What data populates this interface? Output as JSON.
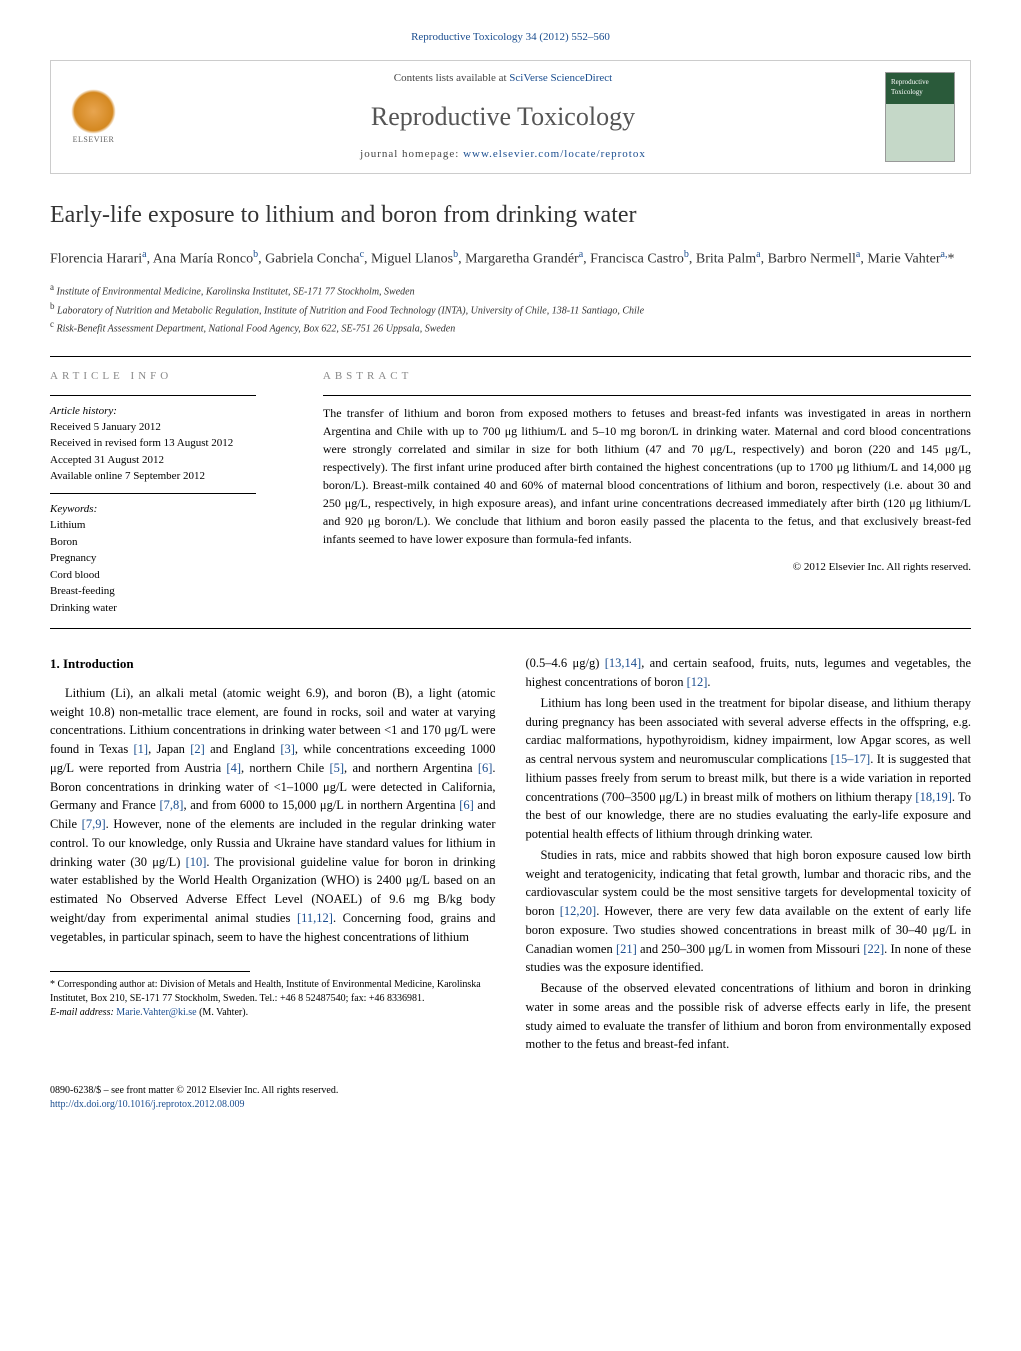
{
  "header": {
    "journal_ref": "Reproductive Toxicology 34 (2012) 552–560",
    "contents_prefix": "Contents lists available at ",
    "contents_link": "SciVerse ScienceDirect",
    "journal_name": "Reproductive Toxicology",
    "homepage_prefix": "journal homepage: ",
    "homepage_url": "www.elsevier.com/locate/reprotox",
    "publisher_name": "ELSEVIER"
  },
  "article": {
    "title": "Early-life exposure to lithium and boron from drinking water",
    "authors_html": "Florencia Harari<sup>a</sup>, Ana María Ronco<sup>b</sup>, Gabriela Concha<sup>c</sup>, Miguel Llanos<sup>b</sup>, Margaretha Grandér<sup>a</sup>, Francisca Castro<sup>b</sup>, Brita Palm<sup>a</sup>, Barbro Nermell<sup>a</sup>, Marie Vahter<sup>a,</sup>*",
    "affiliations": [
      {
        "sup": "a",
        "text": "Institute of Environmental Medicine, Karolinska Institutet, SE-171 77 Stockholm, Sweden"
      },
      {
        "sup": "b",
        "text": "Laboratory of Nutrition and Metabolic Regulation, Institute of Nutrition and Food Technology (INTA), University of Chile, 138-11 Santiago, Chile"
      },
      {
        "sup": "c",
        "text": "Risk-Benefit Assessment Department, National Food Agency, Box 622, SE-751 26 Uppsala, Sweden"
      }
    ]
  },
  "info": {
    "label": "article info",
    "history_label": "Article history:",
    "history": [
      "Received 5 January 2012",
      "Received in revised form 13 August 2012",
      "Accepted 31 August 2012",
      "Available online 7 September 2012"
    ],
    "keywords_label": "Keywords:",
    "keywords": [
      "Lithium",
      "Boron",
      "Pregnancy",
      "Cord blood",
      "Breast-feeding",
      "Drinking water"
    ]
  },
  "abstract": {
    "label": "abstract",
    "text": "The transfer of lithium and boron from exposed mothers to fetuses and breast-fed infants was investigated in areas in northern Argentina and Chile with up to 700 μg lithium/L and 5–10 mg boron/L in drinking water. Maternal and cord blood concentrations were strongly correlated and similar in size for both lithium (47 and 70 μg/L, respectively) and boron (220 and 145 μg/L, respectively). The first infant urine produced after birth contained the highest concentrations (up to 1700 μg lithium/L and 14,000 μg boron/L). Breast-milk contained 40 and 60% of maternal blood concentrations of lithium and boron, respectively (i.e. about 30 and 250 μg/L, respectively, in high exposure areas), and infant urine concentrations decreased immediately after birth (120 μg lithium/L and 920 μg boron/L). We conclude that lithium and boron easily passed the placenta to the fetus, and that exclusively breast-fed infants seemed to have lower exposure than formula-fed infants.",
    "copyright": "© 2012 Elsevier Inc. All rights reserved."
  },
  "body": {
    "intro_heading": "1. Introduction",
    "col1_p1": "Lithium (Li), an alkali metal (atomic weight 6.9), and boron (B), a light (atomic weight 10.8) non-metallic trace element, are found in rocks, soil and water at varying concentrations. Lithium concentrations in drinking water between <1 and 170 μg/L were found in Texas [1], Japan [2] and England [3], while concentrations exceeding 1000 μg/L were reported from Austria [4], northern Chile [5], and northern Argentina [6]. Boron concentrations in drinking water of <1–1000 μg/L were detected in California, Germany and France [7,8], and from 6000 to 15,000 μg/L in northern Argentina [6] and Chile [7,9]. However, none of the elements are included in the regular drinking water control. To our knowledge, only Russia and Ukraine have standard values for lithium in drinking water (30 μg/L) [10]. The provisional guideline value for boron in drinking water established by the World Health Organization (WHO) is 2400 μg/L based on an estimated No Observed Adverse Effect Level (NOAEL) of 9.6 mg B/kg body weight/day from experimental animal studies [11,12]. Concerning food, grains and vegetables, in particular spinach, seem to have the highest concentrations of lithium",
    "col2_p1": "(0.5–4.6 μg/g) [13,14], and certain seafood, fruits, nuts, legumes and vegetables, the highest concentrations of boron [12].",
    "col2_p2": "Lithium has long been used in the treatment for bipolar disease, and lithium therapy during pregnancy has been associated with several adverse effects in the offspring, e.g. cardiac malformations, hypothyroidism, kidney impairment, low Apgar scores, as well as central nervous system and neuromuscular complications [15–17]. It is suggested that lithium passes freely from serum to breast milk, but there is a wide variation in reported concentrations (700–3500 μg/L) in breast milk of mothers on lithium therapy [18,19]. To the best of our knowledge, there are no studies evaluating the early-life exposure and potential health effects of lithium through drinking water.",
    "col2_p3": "Studies in rats, mice and rabbits showed that high boron exposure caused low birth weight and teratogenicity, indicating that fetal growth, lumbar and thoracic ribs, and the cardiovascular system could be the most sensitive targets for developmental toxicity of boron [12,20]. However, there are very few data available on the extent of early life boron exposure. Two studies showed concentrations in breast milk of 30–40 μg/L in Canadian women [21] and 250–300 μg/L in women from Missouri [22]. In none of these studies was the exposure identified.",
    "col2_p4": "Because of the observed elevated concentrations of lithium and boron in drinking water in some areas and the possible risk of adverse effects early in life, the present study aimed to evaluate the transfer of lithium and boron from environmentally exposed mother to the fetus and breast-fed infant."
  },
  "footnote": {
    "corr": "* Corresponding author at: Division of Metals and Health, Institute of Environmental Medicine, Karolinska Institutet, Box 210, SE-171 77 Stockholm, Sweden. Tel.: +46 8 52487540; fax: +46 8336981.",
    "email_label": "E-mail address: ",
    "email": "Marie.Vahter@ki.se",
    "email_suffix": " (M. Vahter)."
  },
  "bottom": {
    "issn": "0890-6238/$ – see front matter © 2012 Elsevier Inc. All rights reserved.",
    "doi": "http://dx.doi.org/10.1016/j.reprotox.2012.08.009"
  },
  "colors": {
    "link": "#1a4d8f",
    "text": "#000000",
    "muted": "#888888",
    "rule": "#000000"
  },
  "typography": {
    "body_pt": 12.5,
    "title_pt": 24,
    "journal_pt": 26,
    "abstract_pt": 12,
    "small_pt": 11,
    "footnote_pt": 10
  }
}
